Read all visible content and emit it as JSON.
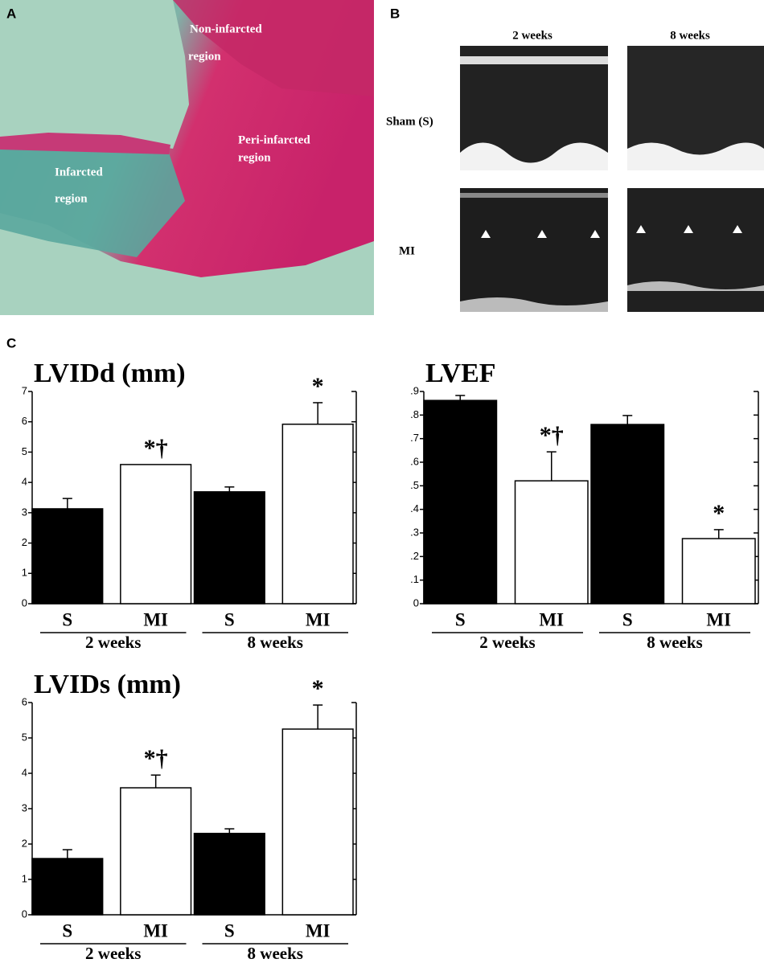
{
  "panels": [
    "A",
    "B",
    "C"
  ],
  "histology": {
    "regions": [
      [
        "Non-infarcted",
        "region"
      ],
      [
        "Peri-infarcted",
        "region"
      ],
      [
        "Infarcted",
        "region"
      ]
    ]
  },
  "echo": {
    "columns": [
      "2 weeks",
      "8 weeks"
    ],
    "rows": [
      "Sham (S)",
      "MI"
    ]
  },
  "chart_data": [
    {
      "type": "bar",
      "title": "LVIDd (mm)",
      "categories": [
        "S",
        "MI",
        "S",
        "MI"
      ],
      "groups": [
        "2 weeks",
        "8 weeks"
      ],
      "values": [
        3.13,
        4.59,
        3.69,
        5.92
      ],
      "errors": [
        0.34,
        null,
        0.16,
        0.71
      ],
      "colors": [
        "#000000",
        "#ffffff",
        "#000000",
        "#ffffff"
      ],
      "annotations": [
        null,
        "*†",
        null,
        "*"
      ],
      "ylim": [
        0,
        7
      ],
      "yticks": [
        0,
        1,
        2,
        3,
        4,
        5,
        6,
        7
      ]
    },
    {
      "type": "bar",
      "title": "LVEF",
      "categories": [
        "S",
        "MI",
        "S",
        "MI"
      ],
      "groups": [
        "2 weeks",
        "8 weeks"
      ],
      "values": [
        0.862,
        0.521,
        0.76,
        0.276
      ],
      "errors": [
        0.021,
        0.123,
        0.038,
        0.038
      ],
      "colors": [
        "#000000",
        "#ffffff",
        "#000000",
        "#ffffff"
      ],
      "annotations": [
        null,
        "*†",
        null,
        "*"
      ],
      "ylim": [
        0,
        0.9
      ],
      "yticks": [
        0,
        {
          "value": 0.1,
          "label": ".1"
        },
        {
          "value": 0.2,
          "label": ".2"
        },
        {
          "value": 0.3,
          "label": ".3"
        },
        {
          "value": 0.4,
          "label": ".4"
        },
        {
          "value": 0.5,
          "label": ".5"
        },
        {
          "value": 0.6,
          "label": ".6"
        },
        {
          "value": 0.7,
          "label": ".7"
        },
        {
          "value": 0.8,
          "label": ".8"
        },
        {
          "value": 0.9,
          "label": ".9"
        }
      ]
    },
    {
      "type": "bar",
      "title": "LVIDs (mm)",
      "categories": [
        "S",
        "MI",
        "S",
        "MI"
      ],
      "groups": [
        "2 weeks",
        "8 weeks"
      ],
      "values": [
        1.59,
        3.59,
        2.3,
        5.25
      ],
      "errors": [
        0.25,
        0.36,
        0.13,
        0.68
      ],
      "colors": [
        "#000000",
        "#ffffff",
        "#000000",
        "#ffffff"
      ],
      "annotations": [
        null,
        "*†",
        null,
        "*"
      ],
      "ylim": [
        0,
        6
      ],
      "yticks": [
        0,
        1,
        2,
        3,
        4,
        5,
        6
      ]
    }
  ]
}
